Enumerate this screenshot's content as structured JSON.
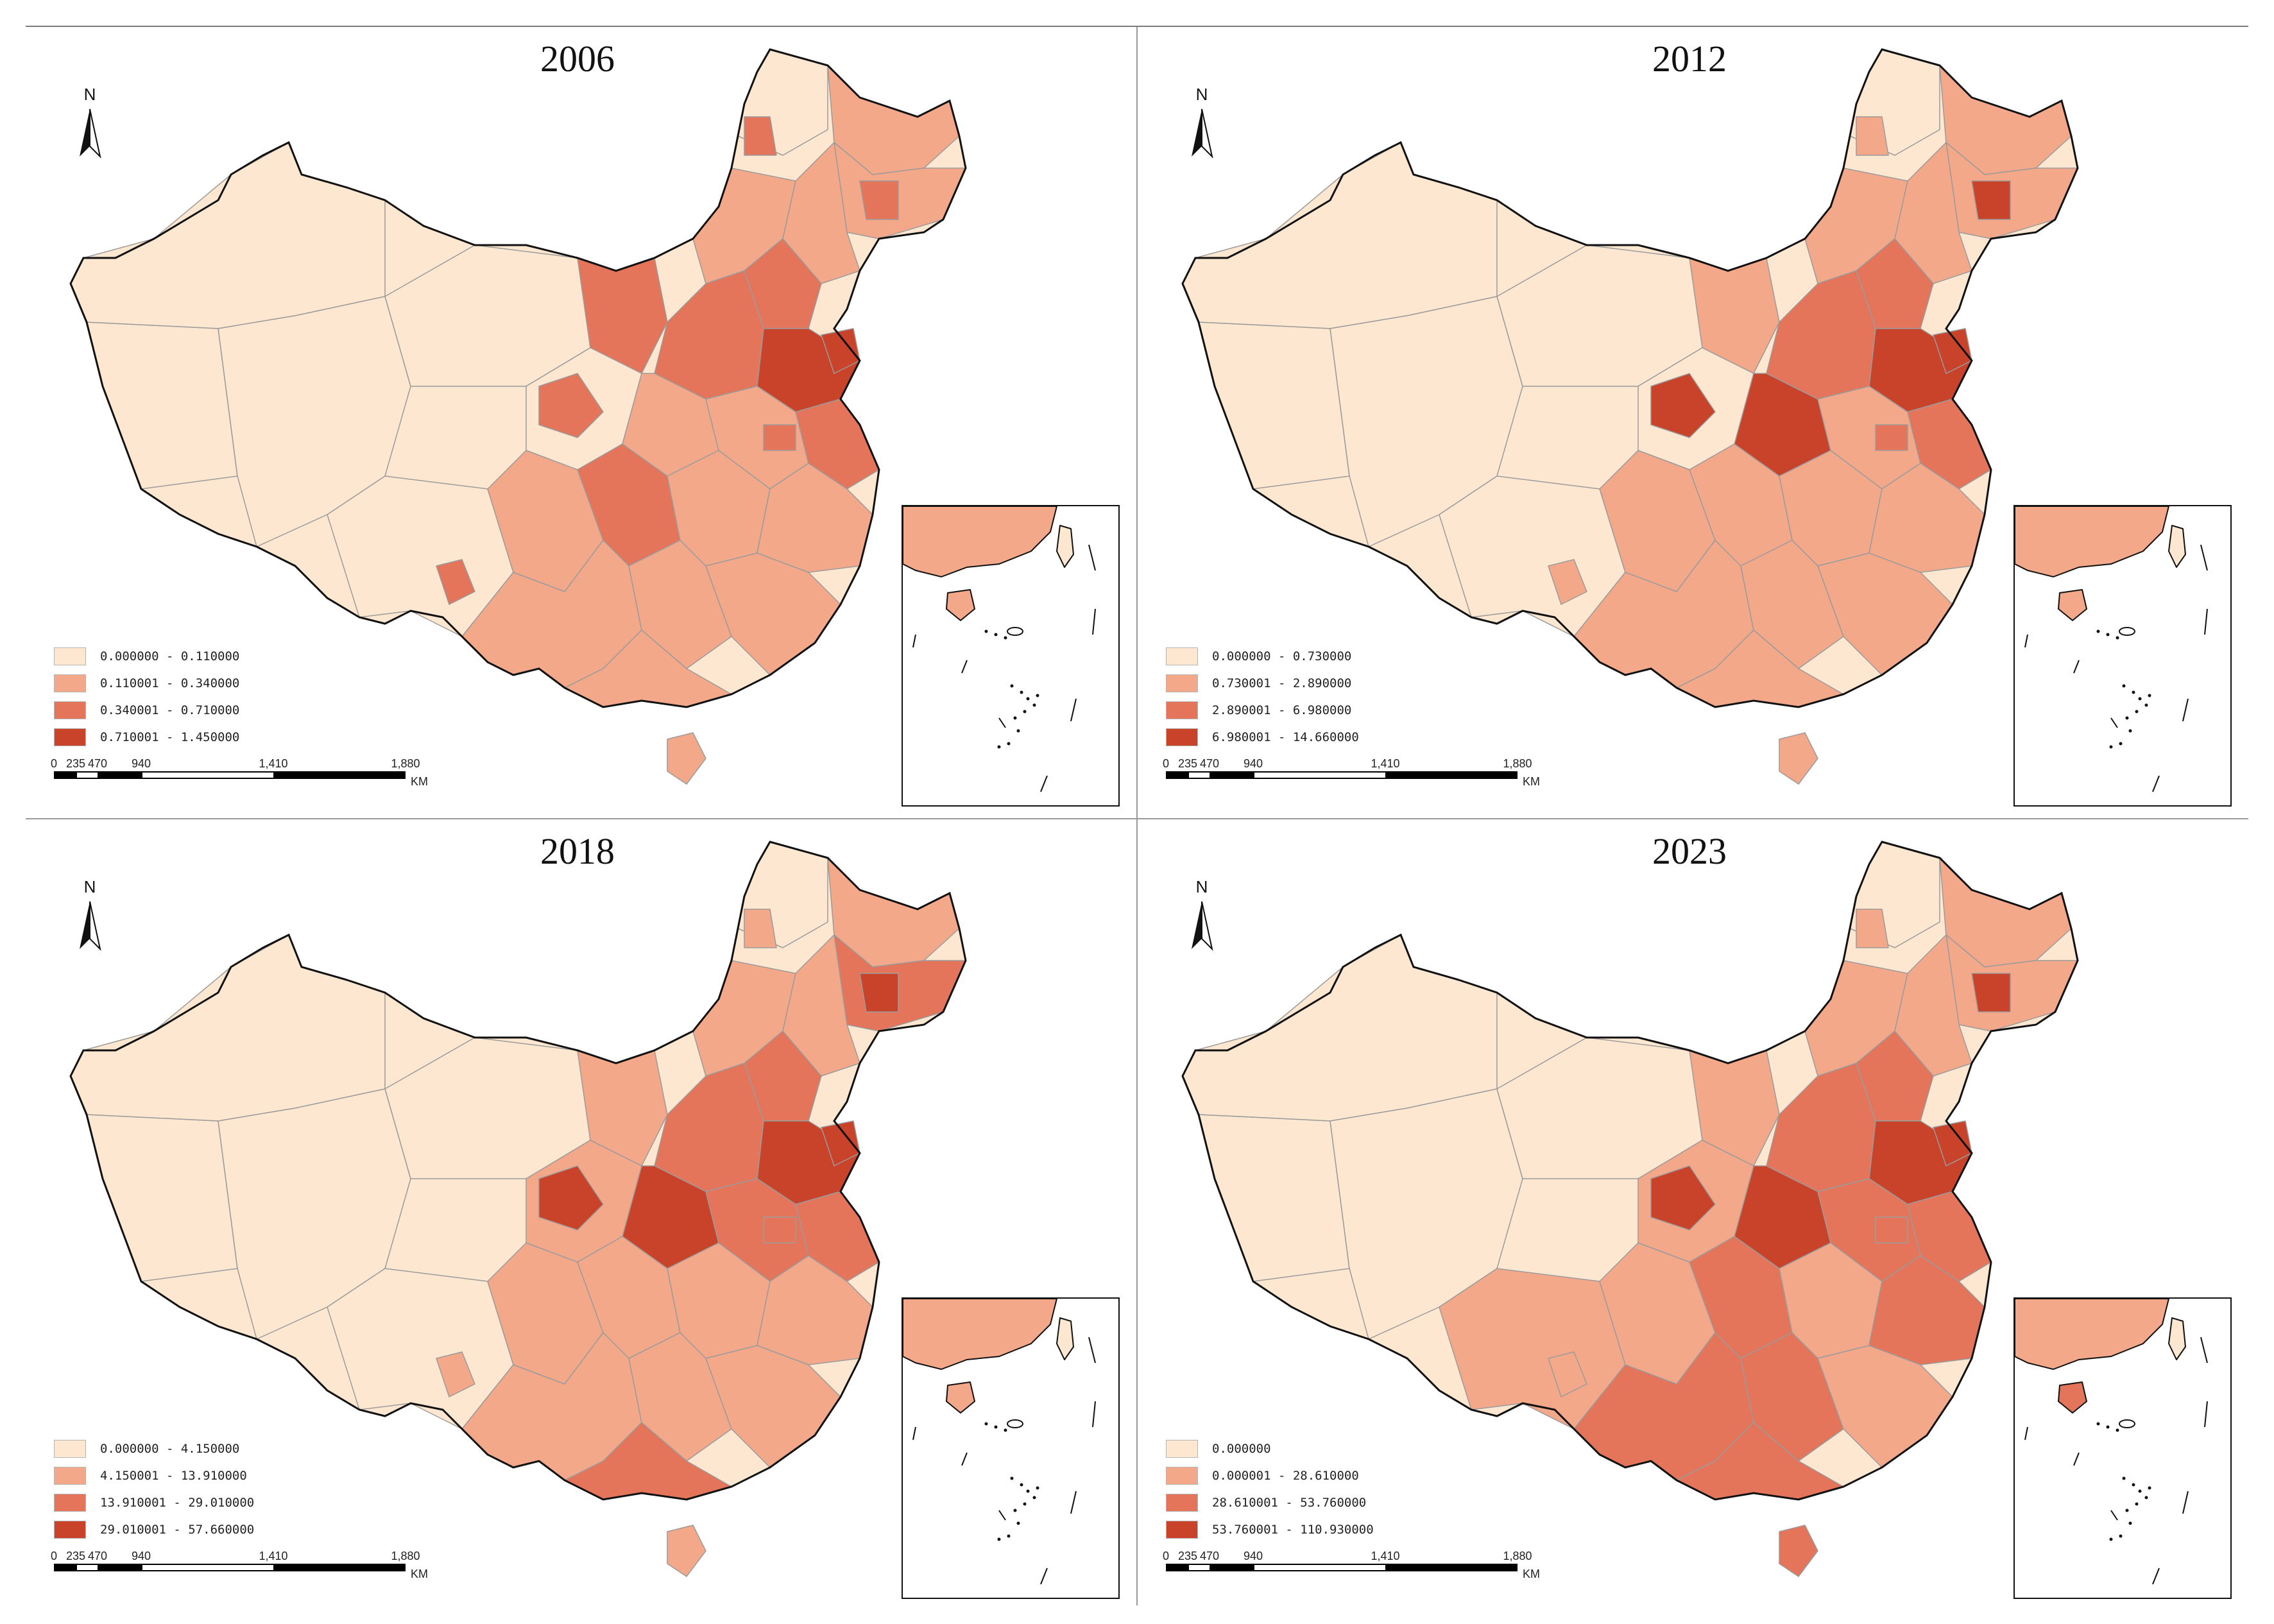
{
  "colors": {
    "class1": "#fde7d0",
    "class2": "#f4a88a",
    "class3": "#e4745a",
    "class4": "#c8432a",
    "boundary": "#9b9b9b",
    "outline": "#111111"
  },
  "north_label": "N",
  "scale_bar": {
    "ticks": [
      "0",
      "235",
      "470",
      "940",
      "1,410",
      "1,880"
    ],
    "unit": "KM"
  },
  "panels": [
    {
      "title": "2006",
      "legend": [
        "0.000000 - 0.110000",
        "0.110001 - 0.340000",
        "0.340001 - 0.710000",
        "0.710001 - 1.450000"
      ]
    },
    {
      "title": "2012",
      "legend": [
        "0.000000 - 0.730000",
        "0.730001 - 2.890000",
        "2.890001 - 6.980000",
        "6.980001 - 14.660000"
      ]
    },
    {
      "title": "2018",
      "legend": [
        "0.000000 - 4.150000",
        "4.150001 - 13.910000",
        "13.910001 - 29.010000",
        "29.010001 - 57.660000"
      ]
    },
    {
      "title": "2023",
      "legend": [
        "0.000000",
        "0.000001 - 28.610000",
        "28.610001 - 53.760000",
        "53.760001 - 110.930000"
      ]
    }
  ]
}
